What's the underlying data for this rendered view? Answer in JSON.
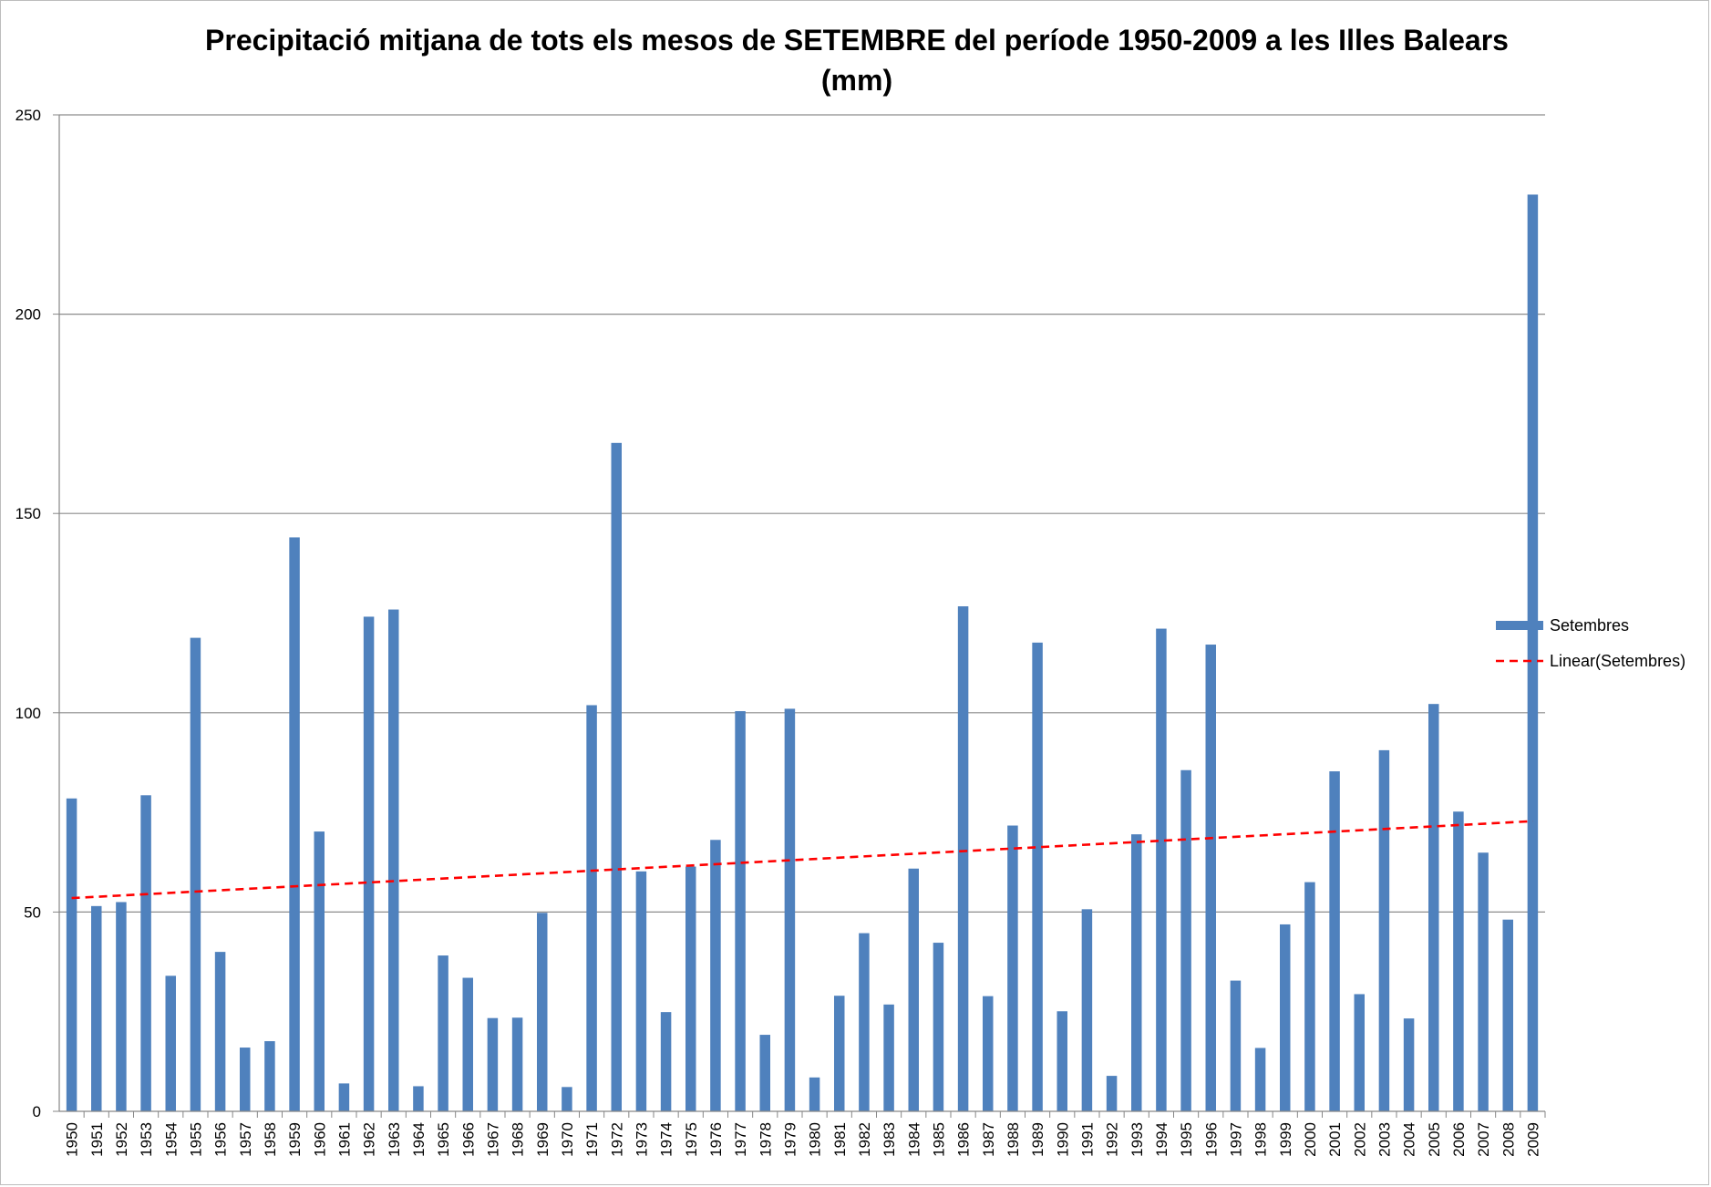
{
  "chart_data": {
    "type": "bar",
    "title": "Precipitació mitjana de tots els mesos de SETEMBRE del període 1950-2009 a les Illes Balears",
    "subtitle": "(mm)",
    "xlabel": "",
    "ylabel": "",
    "ylim": [
      0,
      250
    ],
    "yticks": [
      0,
      50,
      100,
      150,
      200,
      250
    ],
    "grid": true,
    "legend_position": "right",
    "colors": {
      "bar": "#4f81bd",
      "trend": "#ff0000",
      "grid": "#8c8c8c"
    },
    "categories": [
      "1950",
      "1951",
      "1952",
      "1953",
      "1954",
      "1955",
      "1956",
      "1957",
      "1958",
      "1959",
      "1960",
      "1961",
      "1962",
      "1963",
      "1964",
      "1965",
      "1966",
      "1967",
      "1968",
      "1969",
      "1970",
      "1971",
      "1972",
      "1973",
      "1974",
      "1975",
      "1976",
      "1977",
      "1978",
      "1979",
      "1980",
      "1981",
      "1982",
      "1983",
      "1984",
      "1985",
      "1986",
      "1987",
      "1988",
      "1989",
      "1990",
      "1991",
      "1992",
      "1993",
      "1994",
      "1995",
      "1996",
      "1997",
      "1998",
      "1999",
      "2000",
      "2001",
      "2002",
      "2003",
      "2004",
      "2005",
      "2006",
      "2007",
      "2008",
      "2009"
    ],
    "series": [
      {
        "name": "Setembres",
        "type": "bar",
        "values": [
          78.5,
          51.5,
          52.5,
          79.3,
          34,
          118.8,
          40,
          16,
          17.6,
          144,
          70.2,
          7,
          124.1,
          125.9,
          6.3,
          39.1,
          33.5,
          23.4,
          23.5,
          49.8,
          6.1,
          101.9,
          167.7,
          60.2,
          24.9,
          61.4,
          68.1,
          100.4,
          19.2,
          101,
          8.5,
          29,
          44.7,
          26.8,
          60.9,
          42.3,
          126.7,
          28.9,
          71.7,
          117.6,
          25.1,
          50.7,
          8.9,
          69.5,
          121.1,
          85.6,
          117.1,
          32.8,
          15.9,
          46.9,
          57.5,
          85.3,
          29.4,
          90.6,
          23.3,
          102.2,
          75.2,
          64.9,
          48.1,
          230
        ]
      },
      {
        "name": "Linear(Setembres)",
        "type": "trendline",
        "start": 53.5,
        "end": 72.8
      }
    ]
  }
}
